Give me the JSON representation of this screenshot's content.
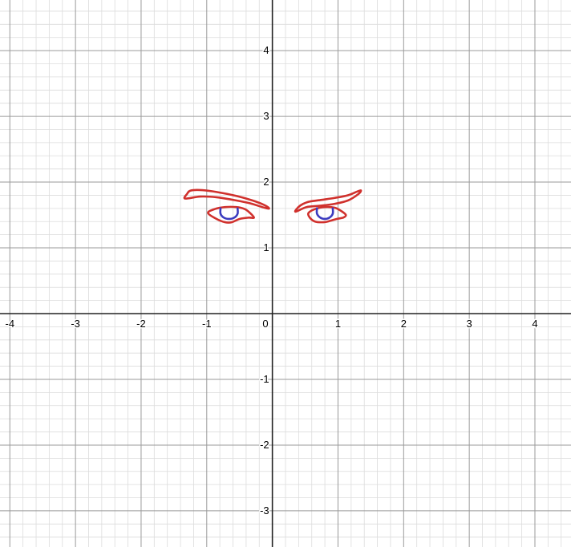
{
  "chart_data": {
    "type": "curve-plot",
    "xlim": [
      -4.15,
      4.55
    ],
    "ylim": [
      -3.55,
      4.77
    ],
    "grid": true,
    "minor_grid_step": 0.2,
    "major_grid_step": 1,
    "colors": {
      "minor_grid": "#dcdcdc",
      "major_grid": "#9a9a9a",
      "axis": "#222222",
      "curve_red": "#d0312d",
      "curve_blue": "#3b3bbf"
    },
    "x_ticks": [
      {
        "value": -4,
        "label": "-4"
      },
      {
        "value": -3,
        "label": "-3"
      },
      {
        "value": -2,
        "label": "-2"
      },
      {
        "value": -1,
        "label": "-1"
      },
      {
        "value": 0,
        "label": "0"
      },
      {
        "value": 1,
        "label": "1"
      },
      {
        "value": 2,
        "label": "2"
      },
      {
        "value": 3,
        "label": "3"
      },
      {
        "value": 4,
        "label": "4"
      }
    ],
    "y_ticks": [
      {
        "value": -3,
        "label": "-3"
      },
      {
        "value": -2,
        "label": "-2"
      },
      {
        "value": -1,
        "label": "-1"
      },
      {
        "value": 1,
        "label": "1"
      },
      {
        "value": 2,
        "label": "2"
      },
      {
        "value": 3,
        "label": "3"
      },
      {
        "value": 4,
        "label": "4"
      }
    ],
    "curves": [
      {
        "id": "left-eyebrow",
        "color": "#d0312d",
        "closed": true,
        "points": [
          [
            -1.33,
            1.75
          ],
          [
            -1.3,
            1.82
          ],
          [
            -1.25,
            1.87
          ],
          [
            -1.1,
            1.88
          ],
          [
            -0.85,
            1.85
          ],
          [
            -0.55,
            1.79
          ],
          [
            -0.3,
            1.72
          ],
          [
            -0.12,
            1.65
          ],
          [
            -0.05,
            1.6
          ],
          [
            -0.12,
            1.61
          ],
          [
            -0.35,
            1.68
          ],
          [
            -0.6,
            1.73
          ],
          [
            -0.85,
            1.77
          ],
          [
            -1.1,
            1.78
          ],
          [
            -1.33,
            1.75
          ]
        ]
      },
      {
        "id": "right-eyebrow",
        "color": "#d0312d",
        "closed": true,
        "points": [
          [
            0.35,
            1.55
          ],
          [
            0.42,
            1.64
          ],
          [
            0.55,
            1.7
          ],
          [
            0.75,
            1.73
          ],
          [
            0.95,
            1.76
          ],
          [
            1.15,
            1.8
          ],
          [
            1.3,
            1.86
          ],
          [
            1.35,
            1.87
          ],
          [
            1.3,
            1.81
          ],
          [
            1.15,
            1.72
          ],
          [
            0.95,
            1.67
          ],
          [
            0.72,
            1.64
          ],
          [
            0.52,
            1.62
          ],
          [
            0.35,
            1.55
          ]
        ]
      },
      {
        "id": "left-eye-outline",
        "color": "#d0312d",
        "closed": true,
        "points": [
          [
            -0.98,
            1.53
          ],
          [
            -0.88,
            1.59
          ],
          [
            -0.72,
            1.62
          ],
          [
            -0.55,
            1.62
          ],
          [
            -0.42,
            1.59
          ],
          [
            -0.34,
            1.53
          ],
          [
            -0.28,
            1.46
          ],
          [
            -0.36,
            1.46
          ],
          [
            -0.5,
            1.44
          ],
          [
            -0.62,
            1.39
          ],
          [
            -0.72,
            1.39
          ],
          [
            -0.85,
            1.44
          ],
          [
            -0.98,
            1.53
          ]
        ]
      },
      {
        "id": "right-eye-outline",
        "color": "#d0312d",
        "closed": true,
        "points": [
          [
            0.55,
            1.53
          ],
          [
            0.65,
            1.59
          ],
          [
            0.8,
            1.62
          ],
          [
            0.95,
            1.61
          ],
          [
            1.05,
            1.56
          ],
          [
            1.12,
            1.5
          ],
          [
            1.08,
            1.46
          ],
          [
            0.98,
            1.44
          ],
          [
            0.88,
            1.41
          ],
          [
            0.78,
            1.39
          ],
          [
            0.65,
            1.4
          ],
          [
            0.57,
            1.46
          ],
          [
            0.55,
            1.53
          ]
        ]
      },
      {
        "id": "left-iris",
        "color": "#3b3bbf",
        "closed": false,
        "points": [
          [
            -0.79,
            1.6
          ],
          [
            -0.79,
            1.52
          ],
          [
            -0.74,
            1.46
          ],
          [
            -0.66,
            1.44
          ],
          [
            -0.58,
            1.46
          ],
          [
            -0.53,
            1.52
          ],
          [
            -0.53,
            1.6
          ]
        ]
      },
      {
        "id": "right-iris",
        "color": "#3b3bbf",
        "closed": false,
        "points": [
          [
            0.68,
            1.6
          ],
          [
            0.68,
            1.52
          ],
          [
            0.73,
            1.46
          ],
          [
            0.8,
            1.44
          ],
          [
            0.87,
            1.46
          ],
          [
            0.92,
            1.52
          ],
          [
            0.92,
            1.6
          ]
        ]
      }
    ]
  }
}
